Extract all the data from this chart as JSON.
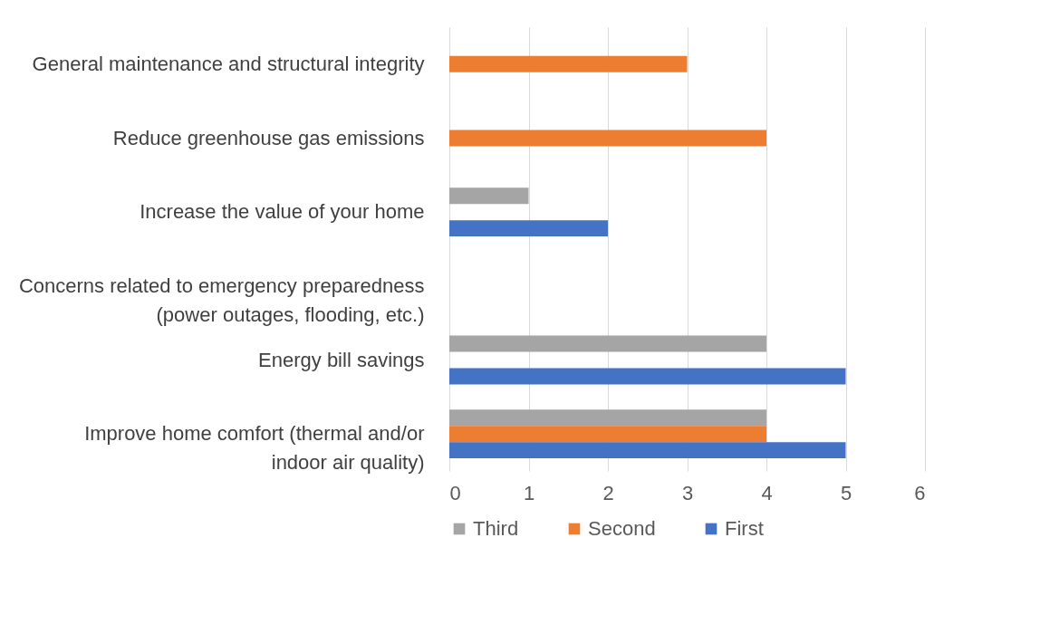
{
  "chart_data": {
    "type": "bar",
    "orientation": "horizontal",
    "categories": [
      "General maintenance and structural integrity",
      "Reduce greenhouse gas emissions",
      "Increase the value of your home",
      "Concerns related to emergency preparedness\n(power outages, flooding, etc.)",
      "Energy bill savings",
      "Improve home comfort (thermal and/or\nindoor air quality)"
    ],
    "series": [
      {
        "name": "Third",
        "color": "#a5a5a5",
        "values": [
          null,
          null,
          1,
          null,
          4,
          4
        ]
      },
      {
        "name": "Second",
        "color": "#ed7d31",
        "values": [
          3,
          4,
          null,
          null,
          null,
          4
        ]
      },
      {
        "name": "First",
        "color": "#4472c4",
        "values": [
          null,
          null,
          2,
          null,
          5,
          5
        ]
      }
    ],
    "xlim": [
      0,
      6
    ],
    "xticks": [
      0,
      1,
      2,
      3,
      4,
      5,
      6
    ],
    "grid": "x",
    "legend": "bottom"
  }
}
